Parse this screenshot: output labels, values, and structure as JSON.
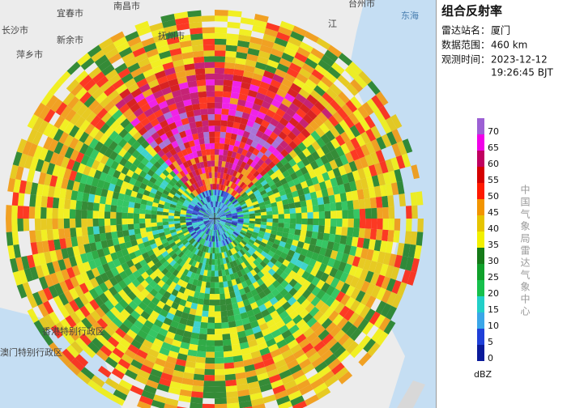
{
  "panel": {
    "title": "组合反射率",
    "info": [
      {
        "label": "雷达站名：",
        "lines": [
          "厦门"
        ]
      },
      {
        "label": "数据范围：",
        "lines": [
          "460 km"
        ]
      },
      {
        "label": "观测时间：",
        "lines": [
          "2023-12-12",
          "19:26:45 BJT"
        ]
      }
    ],
    "legend": {
      "ticks": [
        0,
        5,
        10,
        15,
        20,
        25,
        30,
        35,
        40,
        45,
        50,
        55,
        60,
        65,
        70
      ],
      "colors": [
        "#0a1a9a",
        "#1f3fd8",
        "#3aa6e8",
        "#22cfc8",
        "#16c04c",
        "#0fa02a",
        "#157a18",
        "#f2f000",
        "#e6c400",
        "#f29400",
        "#ff1a00",
        "#d40000",
        "#c00060",
        "#f000e8",
        "#9c60d4"
      ],
      "unit": "dBZ"
    },
    "credit": "中国气象局雷达气象中心"
  },
  "map": {
    "labels": [
      {
        "text": "长沙市"
      },
      {
        "text": "宜春市"
      },
      {
        "text": "南昌市"
      },
      {
        "text": "萍乡市"
      },
      {
        "text": "新余市"
      },
      {
        "text": "抚州市"
      },
      {
        "text": "江"
      },
      {
        "text": "东海"
      },
      {
        "text": "香港特别行政区"
      },
      {
        "text": "澳门特别行政区"
      },
      {
        "text": "台州市"
      }
    ]
  }
}
